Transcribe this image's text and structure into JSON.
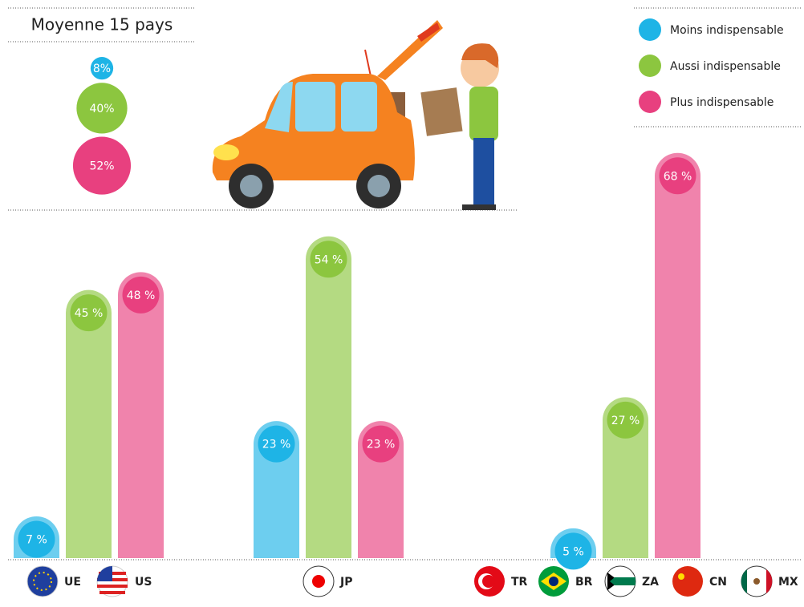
{
  "chart_data": [
    {
      "type": "bubble",
      "title": "Moyenne 15 pays",
      "series": [
        {
          "color": "#1eb4e6",
          "values": [
            8
          ],
          "value_labels": [
            "8%"
          ]
        },
        {
          "color": "#8cc63f",
          "values": [
            40
          ],
          "value_labels": [
            "40%"
          ]
        },
        {
          "color": "#e8407f",
          "values": [
            52
          ],
          "value_labels": [
            "52%"
          ]
        }
      ]
    },
    {
      "type": "bar",
      "categories": [
        [
          "UE",
          "US"
        ],
        [
          "JP"
        ],
        [
          "TR",
          "BR",
          "ZA",
          "CN",
          "MX"
        ]
      ],
      "legend": "top-right",
      "series": [
        {
          "name": "Moins indispensable",
          "color": "#1eb4e6",
          "values": [
            7,
            23,
            5
          ],
          "value_labels": [
            "7 %",
            "23 %",
            "5 %"
          ]
        },
        {
          "name": "Aussi indispensable",
          "color": "#8cc63f",
          "values": [
            45,
            54,
            27
          ],
          "value_labels": [
            "45 %",
            "54 %",
            "27 %"
          ]
        },
        {
          "name": "Plus indispensable",
          "color": "#e8407f",
          "values": [
            48,
            23,
            68
          ],
          "value_labels": [
            "48 %",
            "23 %",
            "68 %"
          ]
        }
      ]
    }
  ]
}
